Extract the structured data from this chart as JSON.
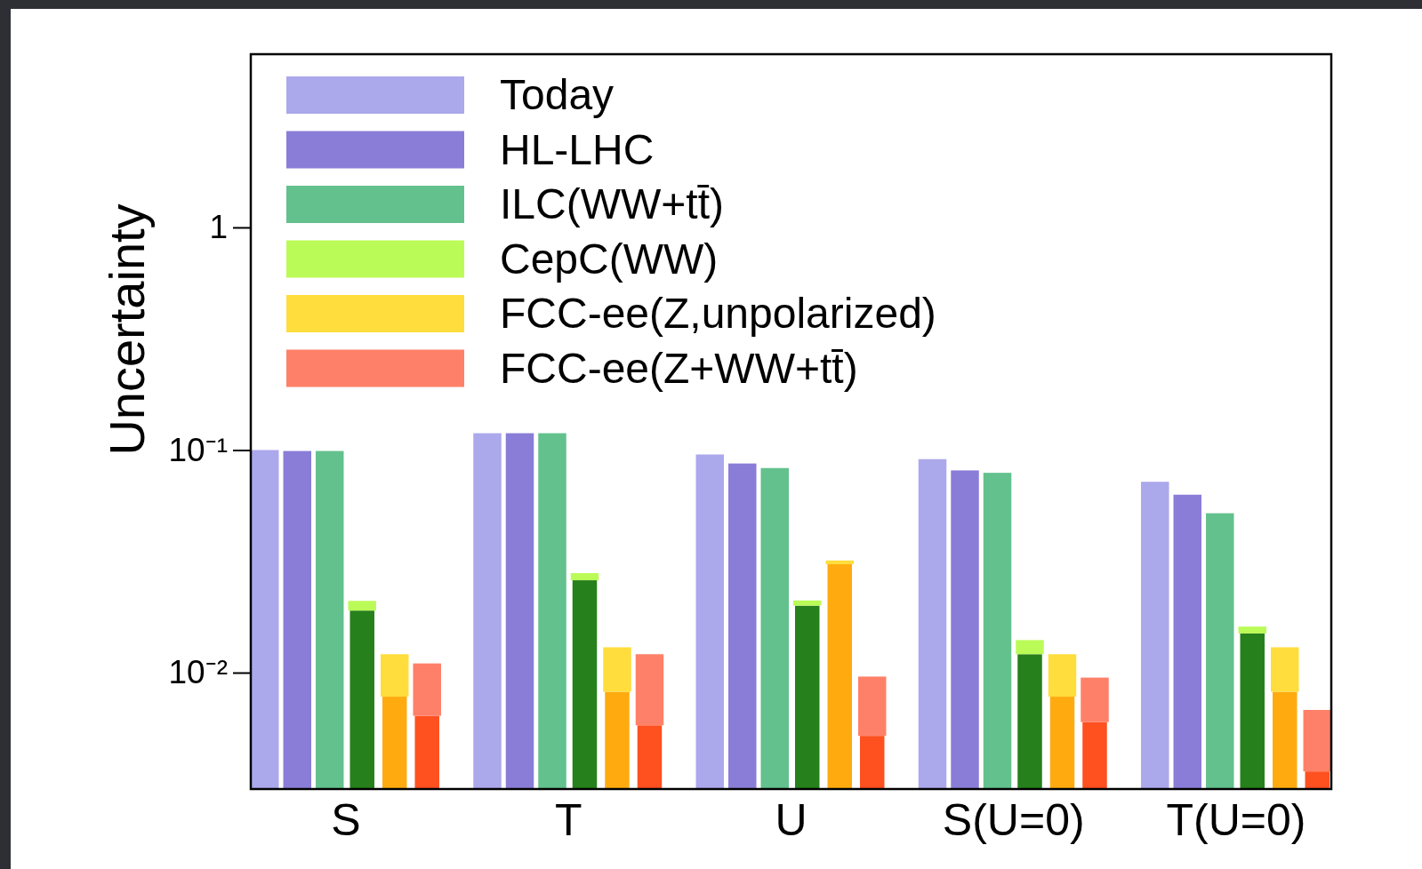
{
  "chart_data": {
    "type": "bar",
    "ylabel": "Uncertainty",
    "categories": [
      "S",
      "T",
      "U",
      "S(U=0)",
      "T(U=0)"
    ],
    "log": "y",
    "ylim": [
      0.003,
      6
    ],
    "yticks": [
      {
        "value": 0.01,
        "label": "10⁻²"
      },
      {
        "value": 0.1,
        "label": "10⁻¹"
      },
      1
    ],
    "legend": "top left",
    "series": [
      {
        "name": "Today",
        "color": "#aba8ec",
        "values": [
          0.1,
          0.119,
          0.0955,
          0.091,
          0.072
        ]
      },
      {
        "name": "HL-LHC",
        "color": "#8a7dd8",
        "values": [
          0.099,
          0.119,
          0.087,
          0.081,
          0.063
        ]
      },
      {
        "name": "ILC(WW+tt̄)",
        "color": "#63c18d",
        "values": [
          0.099,
          0.119,
          0.083,
          0.079,
          0.052
        ]
      },
      {
        "color": "#26801c",
        "values": [
          0.019,
          0.026,
          0.02,
          0.0121,
          0.015
        ]
      },
      {
        "name": "CepC(WW)",
        "color": "#bbfb57",
        "base": [
          0.019,
          0.026,
          0.02,
          0.0121,
          0.015
        ],
        "values": [
          0.002,
          0.002,
          0.0011,
          0.0019,
          0.0011
        ]
      },
      {
        "color": "#ffab10",
        "values": [
          0.0078,
          0.0082,
          0.0307,
          0.0078,
          0.0082
        ]
      },
      {
        "name": "FCC-ee(Z,unpolarized)",
        "color": "#ffdd3c",
        "base": [
          0.0078,
          0.0082,
          0.0307,
          0.0078,
          0.0082
        ],
        "values": [
          0.0043,
          0.0048,
          0.0012,
          0.0043,
          0.0048
        ]
      },
      {
        "color": "#ff5020",
        "values": [
          0.0064,
          0.0058,
          0.0052,
          0.006,
          0.0036
        ]
      },
      {
        "name": "FCC-ee(Z+WW+tt̄)",
        "color": "#ff8068",
        "base": [
          0.0064,
          0.0058,
          0.0052,
          0.006,
          0.0036
        ],
        "values": [
          0.0046,
          0.0063,
          0.0044,
          0.0035,
          0.0032
        ]
      }
    ]
  }
}
